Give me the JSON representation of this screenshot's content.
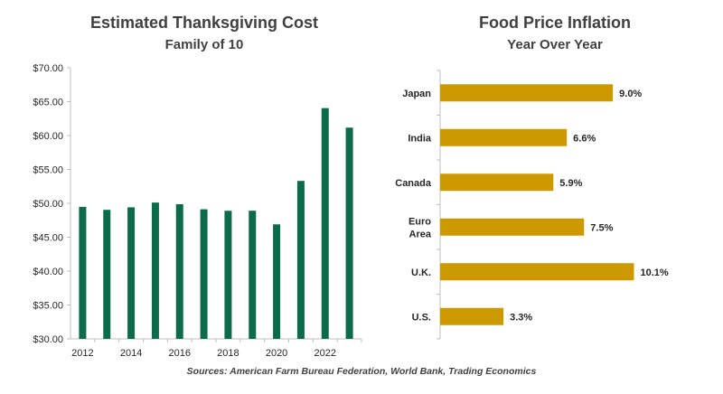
{
  "source": "Sources: American Farm Bureau Federation, World Bank, Trading Economics",
  "colors": {
    "left_bars": "#0b6b4a",
    "right_bars": "#cc9a00",
    "axis": "#bfbfbf",
    "title": "#404040"
  },
  "chart_data": [
    {
      "type": "bar",
      "title": "Estimated Thanksgiving Cost",
      "subtitle": "Family of 10",
      "xlabel": "",
      "ylabel": "",
      "ylim": [
        30,
        70
      ],
      "y_ticks": [
        "$30.00",
        "$35.00",
        "$40.00",
        "$45.00",
        "$50.00",
        "$55.00",
        "$60.00",
        "$65.00",
        "$70.00"
      ],
      "x_tick_labels": [
        "2012",
        "2014",
        "2016",
        "2018",
        "2020",
        "2022"
      ],
      "categories": [
        "2012",
        "2013",
        "2014",
        "2015",
        "2016",
        "2017",
        "2018",
        "2019",
        "2020",
        "2021",
        "2022",
        "2023"
      ],
      "values": [
        49.48,
        49.04,
        49.41,
        50.11,
        49.87,
        49.12,
        48.9,
        48.91,
        46.9,
        53.31,
        64.05,
        61.17
      ],
      "grid": false,
      "legend": "none"
    },
    {
      "type": "bar",
      "orientation": "horizontal",
      "title": "Food Price Inflation",
      "subtitle": "Year Over Year",
      "categories": [
        "Japan",
        "India",
        "Canada",
        "Euro Area",
        "U.K.",
        "U.S."
      ],
      "values": [
        9.0,
        6.6,
        5.9,
        7.5,
        10.1,
        3.3
      ],
      "value_labels": [
        "9.0%",
        "6.6%",
        "5.9%",
        "7.5%",
        "10.1%",
        "3.3%"
      ],
      "xlim": [
        0,
        10.5
      ],
      "grid": false,
      "legend": "none"
    }
  ]
}
